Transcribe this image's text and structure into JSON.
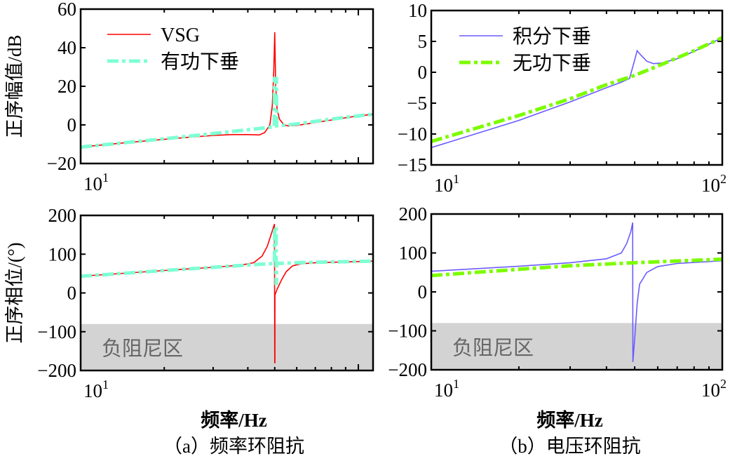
{
  "chart_data": [
    {
      "id": "a-mag",
      "type": "line",
      "xscale": "log",
      "xlim": [
        10,
        113
      ],
      "ylim": [
        -20,
        60
      ],
      "yticks": [
        60,
        40,
        20,
        0,
        -20
      ],
      "xtick_labels": [
        {
          "value": 10,
          "base": "10",
          "exp": "1"
        }
      ],
      "ylabel": "正序幅值/dB",
      "legend": "top-left",
      "grid": false,
      "series": [
        {
          "name": "VSG",
          "color": "#ff0000",
          "style": "solid",
          "x": [
            10,
            15,
            20,
            25,
            30,
            35,
            40,
            44,
            46,
            48,
            49,
            49.6,
            50,
            50.4,
            51,
            52,
            54,
            56,
            60,
            70,
            80,
            90,
            100,
            113
          ],
          "y": [
            -11.5,
            -9,
            -7.5,
            -6.3,
            -5.5,
            -5,
            -5,
            -5.2,
            -4,
            0,
            10,
            28,
            48,
            20,
            8,
            3,
            0,
            -0.5,
            -0.3,
            1.2,
            2.5,
            3.7,
            4.7,
            5.5
          ]
        },
        {
          "name": "有功下垂",
          "color": "#7fffd4",
          "style": "dashdot",
          "x": [
            10,
            20,
            30,
            40,
            49.8,
            49.9,
            50.7,
            50.8,
            60,
            80,
            100,
            113
          ],
          "y": [
            -11.5,
            -7.2,
            -4.5,
            -2.5,
            -1,
            24,
            24,
            -0.5,
            0.5,
            3,
            4.7,
            5.5
          ]
        }
      ]
    },
    {
      "id": "b-mag",
      "type": "line",
      "xscale": "log",
      "xlim": [
        10,
        100
      ],
      "ylim": [
        -15,
        10
      ],
      "yticks": [
        10,
        5,
        0,
        -5,
        -10,
        -15
      ],
      "xtick_labels": [
        {
          "value": 10,
          "base": "10",
          "exp": "1"
        },
        {
          "value": 100,
          "base": "10",
          "exp": "2"
        }
      ],
      "legend": "top-left",
      "grid": false,
      "series": [
        {
          "name": "积分下垂",
          "color": "#6a5cff",
          "style": "solid",
          "x": [
            10,
            20,
            30,
            40,
            45,
            48,
            50,
            51,
            52,
            55,
            58,
            62,
            70,
            80,
            100
          ],
          "y": [
            -12.2,
            -7.8,
            -4.8,
            -2.5,
            -1.6,
            -1,
            2,
            3.5,
            3,
            1.8,
            1.4,
            1.5,
            2.2,
            3.4,
            5.6
          ]
        },
        {
          "name": "无功下垂",
          "color": "#7cfc00",
          "style": "dashdot",
          "x": [
            10,
            20,
            30,
            40,
            50,
            60,
            80,
            100
          ],
          "y": [
            -11.2,
            -7,
            -4.3,
            -2,
            -0.5,
            1,
            3.5,
            5.6
          ]
        }
      ]
    },
    {
      "id": "a-phase",
      "type": "line",
      "xscale": "log",
      "xlim": [
        10,
        113
      ],
      "ylim": [
        -200,
        200
      ],
      "yticks": [
        200,
        100,
        0,
        -100,
        -200
      ],
      "xtick_labels": [
        {
          "value": 10,
          "base": "10",
          "exp": "1"
        }
      ],
      "ylabel": "正序相位/(°)",
      "xlabel": "频率/Hz",
      "caption": "（a）频率环阻抗",
      "shaded_region": {
        "ymin": -200,
        "ymax": -80,
        "label": "负阻尼区",
        "color": "#d3d3d3"
      },
      "grid": false,
      "series": [
        {
          "name": "VSG",
          "color": "#ff0000",
          "style": "solid",
          "x": [
            10,
            20,
            30,
            38,
            42,
            45,
            47,
            49,
            49.9,
            50,
            50.05,
            50.1,
            51,
            53,
            55,
            58,
            62,
            70,
            113
          ],
          "y": [
            43,
            58,
            66,
            72,
            78,
            95,
            120,
            160,
            178,
            -180,
            -180,
            -5,
            10,
            35,
            55,
            70,
            75,
            78,
            82
          ]
        },
        {
          "name": "有功下垂",
          "color": "#7fffd4",
          "style": "dashdot",
          "x": [
            10,
            20,
            30,
            40,
            49.9,
            50,
            50.6,
            50.6,
            50.7,
            50.8,
            60,
            80,
            113
          ],
          "y": [
            43,
            58,
            66,
            72,
            76,
            170,
            170,
            25,
            25,
            76,
            78,
            80,
            82
          ]
        }
      ]
    },
    {
      "id": "b-phase",
      "type": "line",
      "xscale": "log",
      "xlim": [
        10,
        100
      ],
      "ylim": [
        -200,
        200
      ],
      "yticks": [
        200,
        100,
        0,
        -100,
        -200
      ],
      "xtick_labels": [
        {
          "value": 10,
          "base": "10",
          "exp": "1"
        },
        {
          "value": 100,
          "base": "10",
          "exp": "2"
        }
      ],
      "xlabel": "频率/Hz",
      "caption": "（b）电压环阻抗",
      "shaded_region": {
        "ymin": -200,
        "ymax": -80,
        "label": "负阻尼区",
        "color": "#d3d3d3"
      },
      "grid": false,
      "series": [
        {
          "name": "积分下垂",
          "color": "#6a5cff",
          "style": "solid",
          "x": [
            10,
            20,
            30,
            40,
            45,
            47,
            48.5,
            49.2,
            49.3,
            50,
            51,
            52,
            55,
            60,
            70,
            100
          ],
          "y": [
            53,
            66,
            75,
            85,
            100,
            125,
            155,
            178,
            -180,
            -120,
            -30,
            20,
            50,
            65,
            73,
            80
          ]
        },
        {
          "name": "无功下垂",
          "color": "#7cfc00",
          "style": "dashdot",
          "x": [
            10,
            20,
            30,
            50,
            100
          ],
          "y": [
            42,
            58,
            67,
            75,
            84
          ]
        }
      ]
    }
  ]
}
